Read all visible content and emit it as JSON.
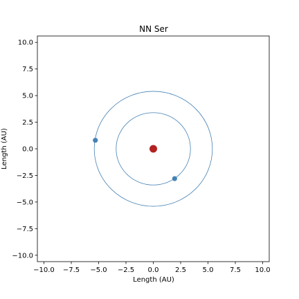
{
  "chart_data": {
    "type": "scatter",
    "title": "NN Ser",
    "xlabel": "Length (AU)",
    "ylabel": "Length (AU)",
    "xlim": [
      -10.6,
      10.6
    ],
    "ylim": [
      -10.6,
      10.6
    ],
    "xticks": [
      -10.0,
      -7.5,
      -5.0,
      -2.5,
      0.0,
      2.5,
      5.0,
      7.5,
      10.0
    ],
    "yticks": [
      -10.0,
      -7.5,
      -5.0,
      -2.5,
      0.0,
      2.5,
      5.0,
      7.5,
      10.0
    ],
    "xtick_labels": [
      "−10.0",
      "−7.5",
      "−5.0",
      "−2.5",
      "0.0",
      "2.5",
      "5.0",
      "7.5",
      "10.0"
    ],
    "ytick_labels": [
      "−10.0",
      "−7.5",
      "−5.0",
      "−2.5",
      "0.0",
      "2.5",
      "5.0",
      "7.5",
      "10.0"
    ],
    "grid": false,
    "star": {
      "x": 0.0,
      "y": 0.0,
      "color": "#b22222"
    },
    "orbits": [
      {
        "radius": 3.4,
        "color": "#4682b4"
      },
      {
        "radius": 5.4,
        "color": "#4682b4"
      }
    ],
    "planets": [
      {
        "x": 1.95,
        "y": -2.8,
        "color": "#4682b4"
      },
      {
        "x": -5.3,
        "y": 0.8,
        "color": "#4682b4"
      }
    ]
  }
}
